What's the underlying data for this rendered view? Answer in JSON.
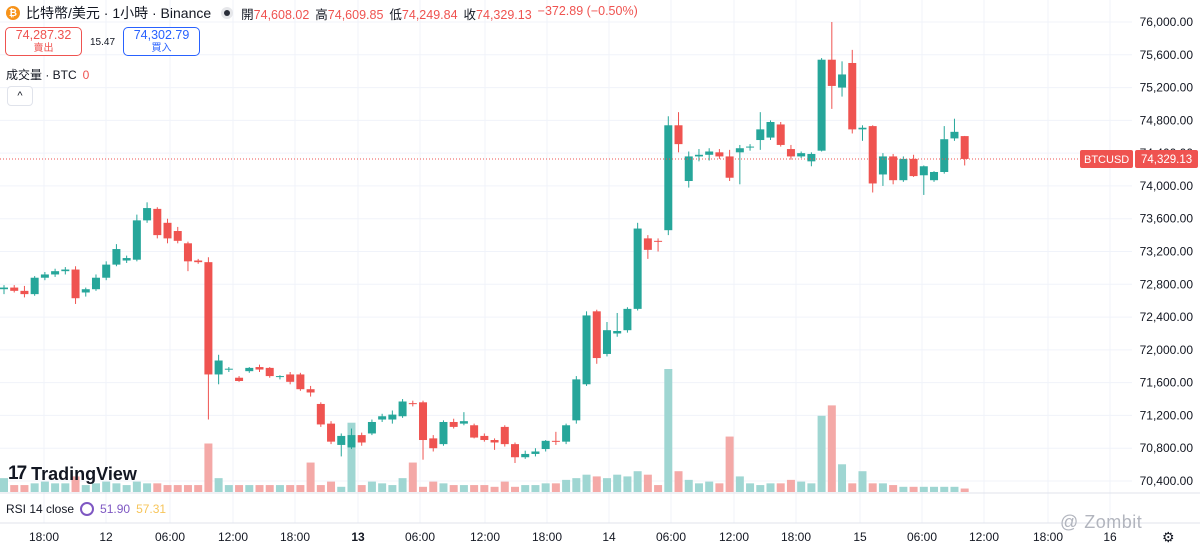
{
  "header": {
    "coin_glyph": "₿",
    "symbol_title": "比特幣/美元 · 1小時 · Binance",
    "open_label": "開",
    "open": "74,608.02",
    "high_label": "高",
    "high": "74,609.85",
    "low_label": "低",
    "low": "74,249.84",
    "close_label": "收",
    "close": "74,329.13",
    "change": "−372.89 (−0.50%)"
  },
  "trade": {
    "sell_price": "74,287.32",
    "sell_label": "賣出",
    "spread": "15.47",
    "buy_price": "74,302.79",
    "buy_label": "買入"
  },
  "volume_legend": {
    "label": "成交量 · BTC",
    "value": "0"
  },
  "collapse_glyph": "^",
  "logo": {
    "mark": "17",
    "name": "TradingView"
  },
  "rsi": {
    "label": "RSI 14 close",
    "value": "51.90",
    "ma": "57.31"
  },
  "price_tag": {
    "symbol": "BTCUSD",
    "price": "74,329.13"
  },
  "watermark": "@ Zombit",
  "settings_glyph": "⚙",
  "colors": {
    "up": "#26a69a",
    "down": "#ef5350",
    "up_volume": "#9fd6d2",
    "down_volume": "#f4a9a7",
    "grid": "#f0f3fa"
  },
  "chart_data": {
    "type": "candlestick",
    "title": "比特幣/美元 · 1小時 · Binance",
    "y_ticks": [
      "76,000.00",
      "75,600.00",
      "75,200.00",
      "74,800.00",
      "74,400.00",
      "74,000.00",
      "73,600.00",
      "73,200.00",
      "72,800.00",
      "72,400.00",
      "72,000.00",
      "71,600.00",
      "71,200.00",
      "70,800.00",
      "70,400.00"
    ],
    "x_ticks": [
      "18:00",
      "12",
      "06:00",
      "12:00",
      "18:00",
      "13",
      "06:00",
      "12:00",
      "18:00",
      "14",
      "06:00",
      "12:00",
      "18:00",
      "15",
      "06:00",
      "12:00",
      "18:00",
      "16"
    ],
    "ylim": [
      70300,
      76150
    ],
    "last_price": 74329.13,
    "candles": [
      {
        "o": 72740,
        "h": 72790,
        "l": 72680,
        "c": 72760,
        "v": 8
      },
      {
        "o": 72760,
        "h": 72790,
        "l": 72700,
        "c": 72720,
        "v": 4
      },
      {
        "o": 72720,
        "h": 72780,
        "l": 72640,
        "c": 72680,
        "v": 4
      },
      {
        "o": 72680,
        "h": 72900,
        "l": 72660,
        "c": 72880,
        "v": 5
      },
      {
        "o": 72880,
        "h": 72950,
        "l": 72850,
        "c": 72920,
        "v": 6
      },
      {
        "o": 72920,
        "h": 72990,
        "l": 72890,
        "c": 72960,
        "v": 5
      },
      {
        "o": 72960,
        "h": 73010,
        "l": 72920,
        "c": 72980,
        "v": 5
      },
      {
        "o": 72980,
        "h": 73020,
        "l": 72560,
        "c": 72630,
        "v": 9
      },
      {
        "o": 72700,
        "h": 72760,
        "l": 72650,
        "c": 72740,
        "v": 4
      },
      {
        "o": 72740,
        "h": 72920,
        "l": 72720,
        "c": 72880,
        "v": 5
      },
      {
        "o": 72880,
        "h": 73080,
        "l": 72850,
        "c": 73040,
        "v": 6
      },
      {
        "o": 73040,
        "h": 73290,
        "l": 73020,
        "c": 73230,
        "v": 5
      },
      {
        "o": 73090,
        "h": 73150,
        "l": 73060,
        "c": 73120,
        "v": 4
      },
      {
        "o": 73100,
        "h": 73650,
        "l": 73080,
        "c": 73580,
        "v": 6
      },
      {
        "o": 73580,
        "h": 73800,
        "l": 73550,
        "c": 73730,
        "v": 5
      },
      {
        "o": 73720,
        "h": 73740,
        "l": 73360,
        "c": 73400,
        "v": 5
      },
      {
        "o": 73550,
        "h": 73600,
        "l": 73300,
        "c": 73360,
        "v": 4
      },
      {
        "o": 73450,
        "h": 73500,
        "l": 73300,
        "c": 73330,
        "v": 4
      },
      {
        "o": 73300,
        "h": 73320,
        "l": 72960,
        "c": 73080,
        "v": 4
      },
      {
        "o": 73090,
        "h": 73110,
        "l": 73050,
        "c": 73070,
        "v": 4
      },
      {
        "o": 73070,
        "h": 73130,
        "l": 71150,
        "c": 71700,
        "v": 28
      },
      {
        "o": 71700,
        "h": 71940,
        "l": 71580,
        "c": 71870,
        "v": 8
      },
      {
        "o": 71760,
        "h": 71790,
        "l": 71730,
        "c": 71770,
        "v": 4
      },
      {
        "o": 71660,
        "h": 71680,
        "l": 71610,
        "c": 71620,
        "v": 4
      },
      {
        "o": 71740,
        "h": 71790,
        "l": 71720,
        "c": 71780,
        "v": 4
      },
      {
        "o": 71790,
        "h": 71820,
        "l": 71730,
        "c": 71760,
        "v": 4
      },
      {
        "o": 71780,
        "h": 71790,
        "l": 71660,
        "c": 71680,
        "v": 4
      },
      {
        "o": 71670,
        "h": 71690,
        "l": 71640,
        "c": 71680,
        "v": 4
      },
      {
        "o": 71700,
        "h": 71730,
        "l": 71580,
        "c": 71610,
        "v": 4
      },
      {
        "o": 71700,
        "h": 71720,
        "l": 71500,
        "c": 71520,
        "v": 4
      },
      {
        "o": 71520,
        "h": 71560,
        "l": 71430,
        "c": 71480,
        "v": 17
      },
      {
        "o": 71340,
        "h": 71360,
        "l": 71060,
        "c": 71090,
        "v": 4
      },
      {
        "o": 71100,
        "h": 71130,
        "l": 70850,
        "c": 70880,
        "v": 6
      },
      {
        "o": 70840,
        "h": 70980,
        "l": 70700,
        "c": 70950,
        "v": 3
      },
      {
        "o": 70810,
        "h": 71040,
        "l": 70790,
        "c": 70960,
        "v": 40
      },
      {
        "o": 70960,
        "h": 70990,
        "l": 70830,
        "c": 70870,
        "v": 4
      },
      {
        "o": 70980,
        "h": 71150,
        "l": 70960,
        "c": 71120,
        "v": 6
      },
      {
        "o": 71150,
        "h": 71220,
        "l": 71120,
        "c": 71190,
        "v": 5
      },
      {
        "o": 71150,
        "h": 71260,
        "l": 71100,
        "c": 71210,
        "v": 4
      },
      {
        "o": 71190,
        "h": 71400,
        "l": 71170,
        "c": 71370,
        "v": 8
      },
      {
        "o": 71350,
        "h": 71380,
        "l": 71310,
        "c": 71340,
        "v": 17
      },
      {
        "o": 71360,
        "h": 71380,
        "l": 70660,
        "c": 70900,
        "v": 3
      },
      {
        "o": 70920,
        "h": 70960,
        "l": 70760,
        "c": 70800,
        "v": 6
      },
      {
        "o": 70850,
        "h": 71140,
        "l": 70830,
        "c": 71120,
        "v": 5
      },
      {
        "o": 71120,
        "h": 71160,
        "l": 71040,
        "c": 71060,
        "v": 4
      },
      {
        "o": 71100,
        "h": 71240,
        "l": 71080,
        "c": 71130,
        "v": 4
      },
      {
        "o": 71080,
        "h": 71100,
        "l": 70920,
        "c": 70930,
        "v": 4
      },
      {
        "o": 70950,
        "h": 70980,
        "l": 70880,
        "c": 70900,
        "v": 4
      },
      {
        "o": 70900,
        "h": 70920,
        "l": 70780,
        "c": 70870,
        "v": 3
      },
      {
        "o": 71060,
        "h": 71080,
        "l": 70820,
        "c": 70850,
        "v": 6
      },
      {
        "o": 70850,
        "h": 70870,
        "l": 70620,
        "c": 70690,
        "v": 3
      },
      {
        "o": 70690,
        "h": 70770,
        "l": 70670,
        "c": 70730,
        "v": 4
      },
      {
        "o": 70730,
        "h": 70800,
        "l": 70700,
        "c": 70760,
        "v": 4
      },
      {
        "o": 70790,
        "h": 70900,
        "l": 70760,
        "c": 70890,
        "v": 5
      },
      {
        "o": 70890,
        "h": 71000,
        "l": 70840,
        "c": 70880,
        "v": 5
      },
      {
        "o": 70880,
        "h": 71100,
        "l": 70850,
        "c": 71080,
        "v": 7
      },
      {
        "o": 71140,
        "h": 71680,
        "l": 71100,
        "c": 71640,
        "v": 8
      },
      {
        "o": 71580,
        "h": 72470,
        "l": 71560,
        "c": 72420,
        "v": 10
      },
      {
        "o": 72470,
        "h": 72490,
        "l": 71830,
        "c": 71900,
        "v": 9
      },
      {
        "o": 71950,
        "h": 72340,
        "l": 71920,
        "c": 72240,
        "v": 8
      },
      {
        "o": 72200,
        "h": 72450,
        "l": 72160,
        "c": 72230,
        "v": 10
      },
      {
        "o": 72240,
        "h": 72520,
        "l": 72210,
        "c": 72500,
        "v": 9
      },
      {
        "o": 72500,
        "h": 73550,
        "l": 72480,
        "c": 73480,
        "v": 12
      },
      {
        "o": 73360,
        "h": 73400,
        "l": 73110,
        "c": 73220,
        "v": 10
      },
      {
        "o": 73330,
        "h": 73360,
        "l": 73200,
        "c": 73320,
        "v": 4
      },
      {
        "o": 73460,
        "h": 74850,
        "l": 73400,
        "c": 74740,
        "v": 71
      },
      {
        "o": 74740,
        "h": 74900,
        "l": 74410,
        "c": 74510,
        "v": 12
      },
      {
        "o": 74060,
        "h": 74420,
        "l": 73980,
        "c": 74360,
        "v": 7
      },
      {
        "o": 74360,
        "h": 74450,
        "l": 74300,
        "c": 74380,
        "v": 5
      },
      {
        "o": 74380,
        "h": 74460,
        "l": 74310,
        "c": 74420,
        "v": 6
      },
      {
        "o": 74410,
        "h": 74450,
        "l": 74330,
        "c": 74360,
        "v": 5
      },
      {
        "o": 74360,
        "h": 74440,
        "l": 74060,
        "c": 74100,
        "v": 32
      },
      {
        "o": 74410,
        "h": 74500,
        "l": 74020,
        "c": 74460,
        "v": 9
      },
      {
        "o": 74470,
        "h": 74510,
        "l": 74430,
        "c": 74480,
        "v": 5
      },
      {
        "o": 74560,
        "h": 74900,
        "l": 74440,
        "c": 74690,
        "v": 4
      },
      {
        "o": 74590,
        "h": 74800,
        "l": 74560,
        "c": 74780,
        "v": 5
      },
      {
        "o": 74750,
        "h": 74780,
        "l": 74480,
        "c": 74500,
        "v": 5
      },
      {
        "o": 74450,
        "h": 74500,
        "l": 74320,
        "c": 74360,
        "v": 7
      },
      {
        "o": 74360,
        "h": 74420,
        "l": 74340,
        "c": 74400,
        "v": 6
      },
      {
        "o": 74300,
        "h": 74410,
        "l": 74240,
        "c": 74390,
        "v": 5
      },
      {
        "o": 74430,
        "h": 75560,
        "l": 74420,
        "c": 75540,
        "v": 44
      },
      {
        "o": 75540,
        "h": 76000,
        "l": 74940,
        "c": 75220,
        "v": 50
      },
      {
        "o": 75200,
        "h": 75520,
        "l": 75090,
        "c": 75360,
        "v": 16
      },
      {
        "o": 75500,
        "h": 75660,
        "l": 74640,
        "c": 74690,
        "v": 5
      },
      {
        "o": 74690,
        "h": 74740,
        "l": 74550,
        "c": 74710,
        "v": 12
      },
      {
        "o": 74730,
        "h": 74740,
        "l": 73920,
        "c": 74030,
        "v": 5
      },
      {
        "o": 74140,
        "h": 74400,
        "l": 74000,
        "c": 74360,
        "v": 5
      },
      {
        "o": 74360,
        "h": 74390,
        "l": 74020,
        "c": 74070,
        "v": 4
      },
      {
        "o": 74070,
        "h": 74360,
        "l": 74050,
        "c": 74330,
        "v": 3
      },
      {
        "o": 74330,
        "h": 74380,
        "l": 74110,
        "c": 74120,
        "v": 3
      },
      {
        "o": 74130,
        "h": 74250,
        "l": 73890,
        "c": 74240,
        "v": 3
      },
      {
        "o": 74070,
        "h": 74180,
        "l": 74050,
        "c": 74170,
        "v": 3
      },
      {
        "o": 74170,
        "h": 74730,
        "l": 74150,
        "c": 74570,
        "v": 3
      },
      {
        "o": 74580,
        "h": 74820,
        "l": 74550,
        "c": 74660,
        "v": 3
      },
      {
        "o": 74608.02,
        "h": 74609.85,
        "l": 74249.84,
        "c": 74329.13,
        "v": 2
      }
    ]
  }
}
